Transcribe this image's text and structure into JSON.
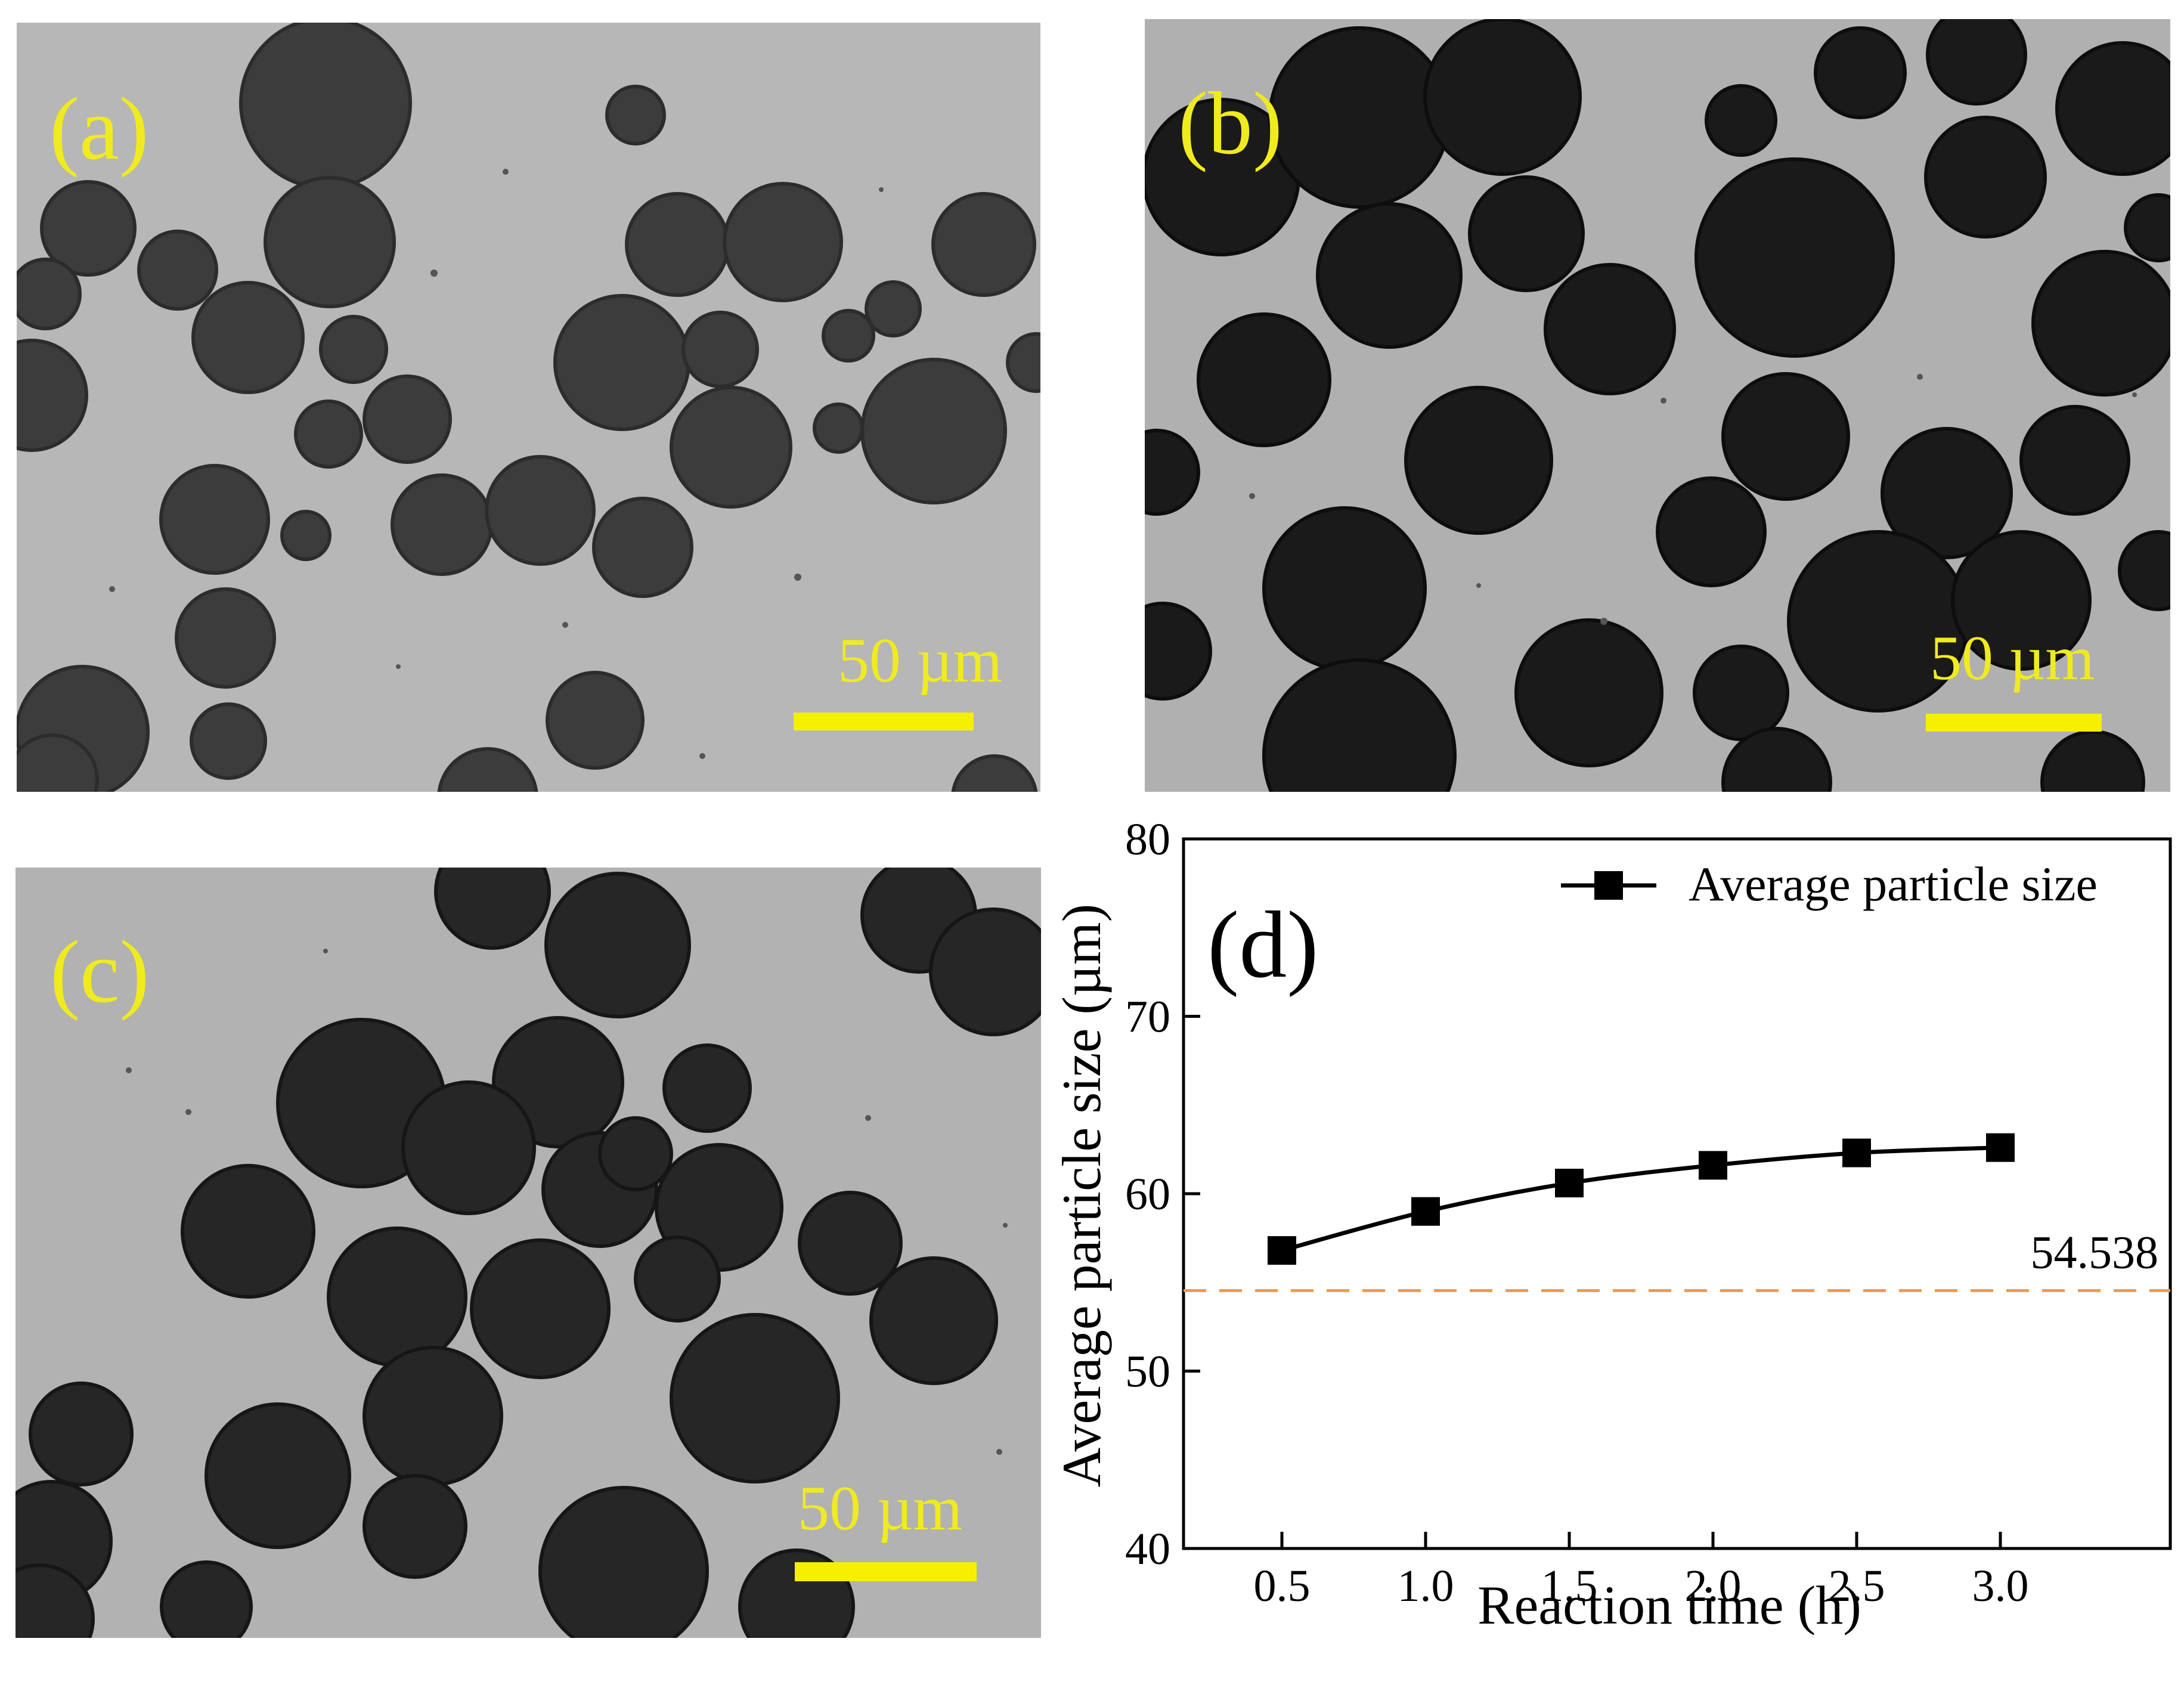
{
  "figure": {
    "panels": [
      {
        "label": "(a)",
        "scale_text": "50 µm",
        "shade": "#3c3c3c",
        "bg": "#b7b7b7"
      },
      {
        "label": "(b)",
        "scale_text": "50 µm",
        "shade": "#1a1a1a",
        "bg": "#b0b0b0"
      },
      {
        "label": "(c)",
        "scale_text": "50 µm",
        "shade": "#262626",
        "bg": "#b2b2b2"
      }
    ],
    "label_color": "#f0eb1e",
    "scalebar_color": "#f5f000"
  },
  "chart_data": {
    "type": "line",
    "panel_label": "(d)",
    "xlabel": "Reaction time (h)",
    "ylabel": "Average particle size (µm)",
    "x": [
      0.5,
      1.0,
      1.5,
      2.0,
      2.5,
      3.0
    ],
    "x_tick_labels": [
      "0.5",
      "1.0",
      "1.5",
      "2.0",
      "2.5",
      "3.0"
    ],
    "xlim": [
      0.5,
      3.0
    ],
    "ylim": [
      40,
      80
    ],
    "y_ticks": [
      40,
      50,
      60,
      70,
      80
    ],
    "series": [
      {
        "name": "Average particle size",
        "values": [
          56.8,
          59.0,
          60.6,
          61.6,
          62.3,
          62.6
        ],
        "color": "#000000",
        "marker": "square"
      }
    ],
    "reference_line": {
      "value": 54.538,
      "label": "54.538",
      "color": "#f39a4a",
      "style": "dashed"
    },
    "legend": "top-right",
    "grid": false
  }
}
